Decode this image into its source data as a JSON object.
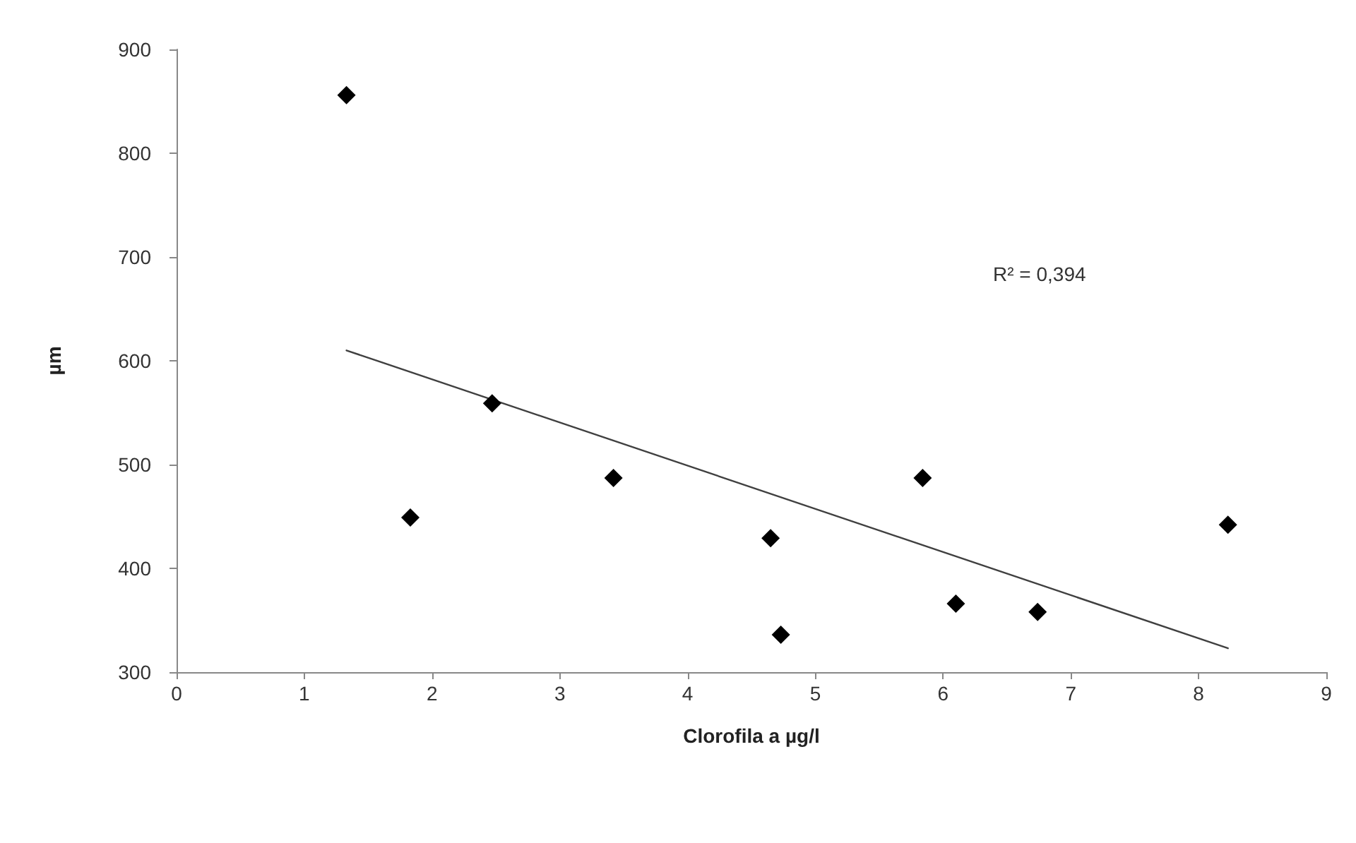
{
  "chart_data": {
    "type": "scatter",
    "xlabel": "Clorofila a µg/l",
    "ylabel": "µm",
    "xlim": [
      0,
      9
    ],
    "xticks": [
      0,
      1,
      2,
      3,
      4,
      5,
      6,
      7,
      8,
      9
    ],
    "ylim": [
      300,
      900
    ],
    "yticks": [
      300,
      400,
      500,
      600,
      700,
      800,
      900
    ],
    "grid": false,
    "marker": "diamond",
    "annotations": [
      "R² = 0,394"
    ],
    "series": [
      {
        "color": "#000000",
        "x": [
          1.33,
          1.83,
          2.47,
          3.42,
          4.65,
          4.73,
          5.84,
          6.1,
          6.74,
          8.23
        ],
        "values": [
          856,
          449,
          559,
          487,
          429,
          336,
          487,
          366,
          358,
          442
        ]
      },
      {
        "type": "line",
        "color": "#404040",
        "marker": "none",
        "line_style": "solid",
        "x": [
          1.33,
          8.23
        ],
        "values": [
          610,
          323
        ]
      }
    ]
  }
}
